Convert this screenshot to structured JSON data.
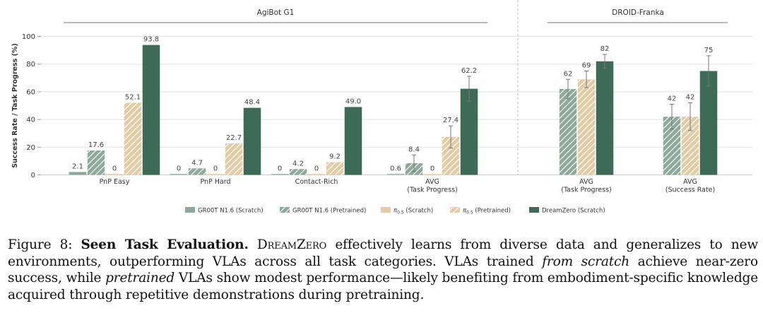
{
  "chart_data": {
    "type": "bar",
    "ylabel": "Success Rate / Task Progress (%)",
    "ylim": [
      0,
      105
    ],
    "yticks": [
      "0",
      "20",
      "40",
      "60",
      "80",
      "100"
    ],
    "grid": true,
    "legend_placement": "bottom-center",
    "panels": [
      {
        "title": "AgiBot G1",
        "categories": [
          "PnP Easy",
          "PnP Hard",
          "Contact-Rich",
          "AVG\n(Task Progress)"
        ],
        "series": [
          {
            "name": "GR00T N1.6 (Scratch)",
            "values": [
              2.1,
              0,
              0,
              0.6
            ],
            "labels": [
              "2.1",
              "0",
              "0",
              "0.6"
            ]
          },
          {
            "name": "GR00T N1.6 (Pretrained)",
            "values": [
              17.6,
              4.7,
              4.2,
              8.4
            ],
            "labels": [
              "17.6",
              "4.7",
              "4.2",
              "8.4"
            ],
            "err": [
              null,
              null,
              null,
              6
            ]
          },
          {
            "name": "π0.5 (Scratch)",
            "values": [
              0,
              0,
              0,
              0
            ],
            "labels": [
              "0",
              "0",
              "0",
              "0"
            ]
          },
          {
            "name": "π0.5 (Pretrained)",
            "values": [
              52.1,
              22.7,
              9.2,
              27.4
            ],
            "labels": [
              "52.1",
              "22.7",
              "9.2",
              "27.4"
            ],
            "err": [
              null,
              null,
              null,
              8
            ]
          },
          {
            "name": "DreamZero (Scratch)",
            "values": [
              93.8,
              48.4,
              49.0,
              62.2
            ],
            "labels": [
              "93.8",
              "48.4",
              "49.0",
              "62.2"
            ],
            "err": [
              null,
              null,
              null,
              9
            ]
          }
        ]
      },
      {
        "title": "DROID-Franka",
        "categories": [
          "AVG\n(Task Progress)",
          "AVG\n(Success Rate)"
        ],
        "series": [
          {
            "name": "GR00T N1.6 (Pretrained)",
            "values": [
              62,
              42
            ],
            "labels": [
              "62",
              "42"
            ],
            "err": [
              7,
              9
            ]
          },
          {
            "name": "π0.5 (Pretrained)",
            "values": [
              69,
              42
            ],
            "labels": [
              "69",
              "42"
            ],
            "err": [
              6,
              10
            ]
          },
          {
            "name": "DreamZero (Scratch)",
            "values": [
              82,
              75
            ],
            "labels": [
              "82",
              "75"
            ],
            "err": [
              5,
              11
            ]
          }
        ]
      }
    ],
    "legend": [
      {
        "label": "GR00T N1.6 (Scratch)",
        "style": "solid",
        "color": "#8fa89c"
      },
      {
        "label": "GR00T N1.6 (Pretrained)",
        "style": "hatch",
        "color": "#8fa89c"
      },
      {
        "label": "π0.5 (Scratch)",
        "style": "solid",
        "color": "#e0cda5"
      },
      {
        "label": "π0.5 (Pretrained)",
        "style": "hatch",
        "color": "#e0cda5"
      },
      {
        "label": "DreamZero (Scratch)",
        "style": "solid",
        "color": "#3e6b58"
      }
    ]
  },
  "colors": {
    "groot": "#8fa89c",
    "pi": "#e0cda5",
    "dreamzero": "#3e6b58",
    "axis_text": "#333333",
    "grid": "#e4e4e4"
  },
  "caption": {
    "figure_label": "Figure 8:",
    "bold_title": "Seen Task Evaluation.",
    "model_name": "DreamZero",
    "text_1": "effectively learns from diverse data and generalizes to new environments, outperforming VLAs across all task categories. VLAs trained",
    "italic_1": "from scratch",
    "text_2": "achieve near-zero success, while",
    "italic_2": "pretrained",
    "text_3": "VLAs show modest performance—likely benefiting from embodiment-specific knowledge acquired through repetitive demonstrations during pretraining."
  }
}
